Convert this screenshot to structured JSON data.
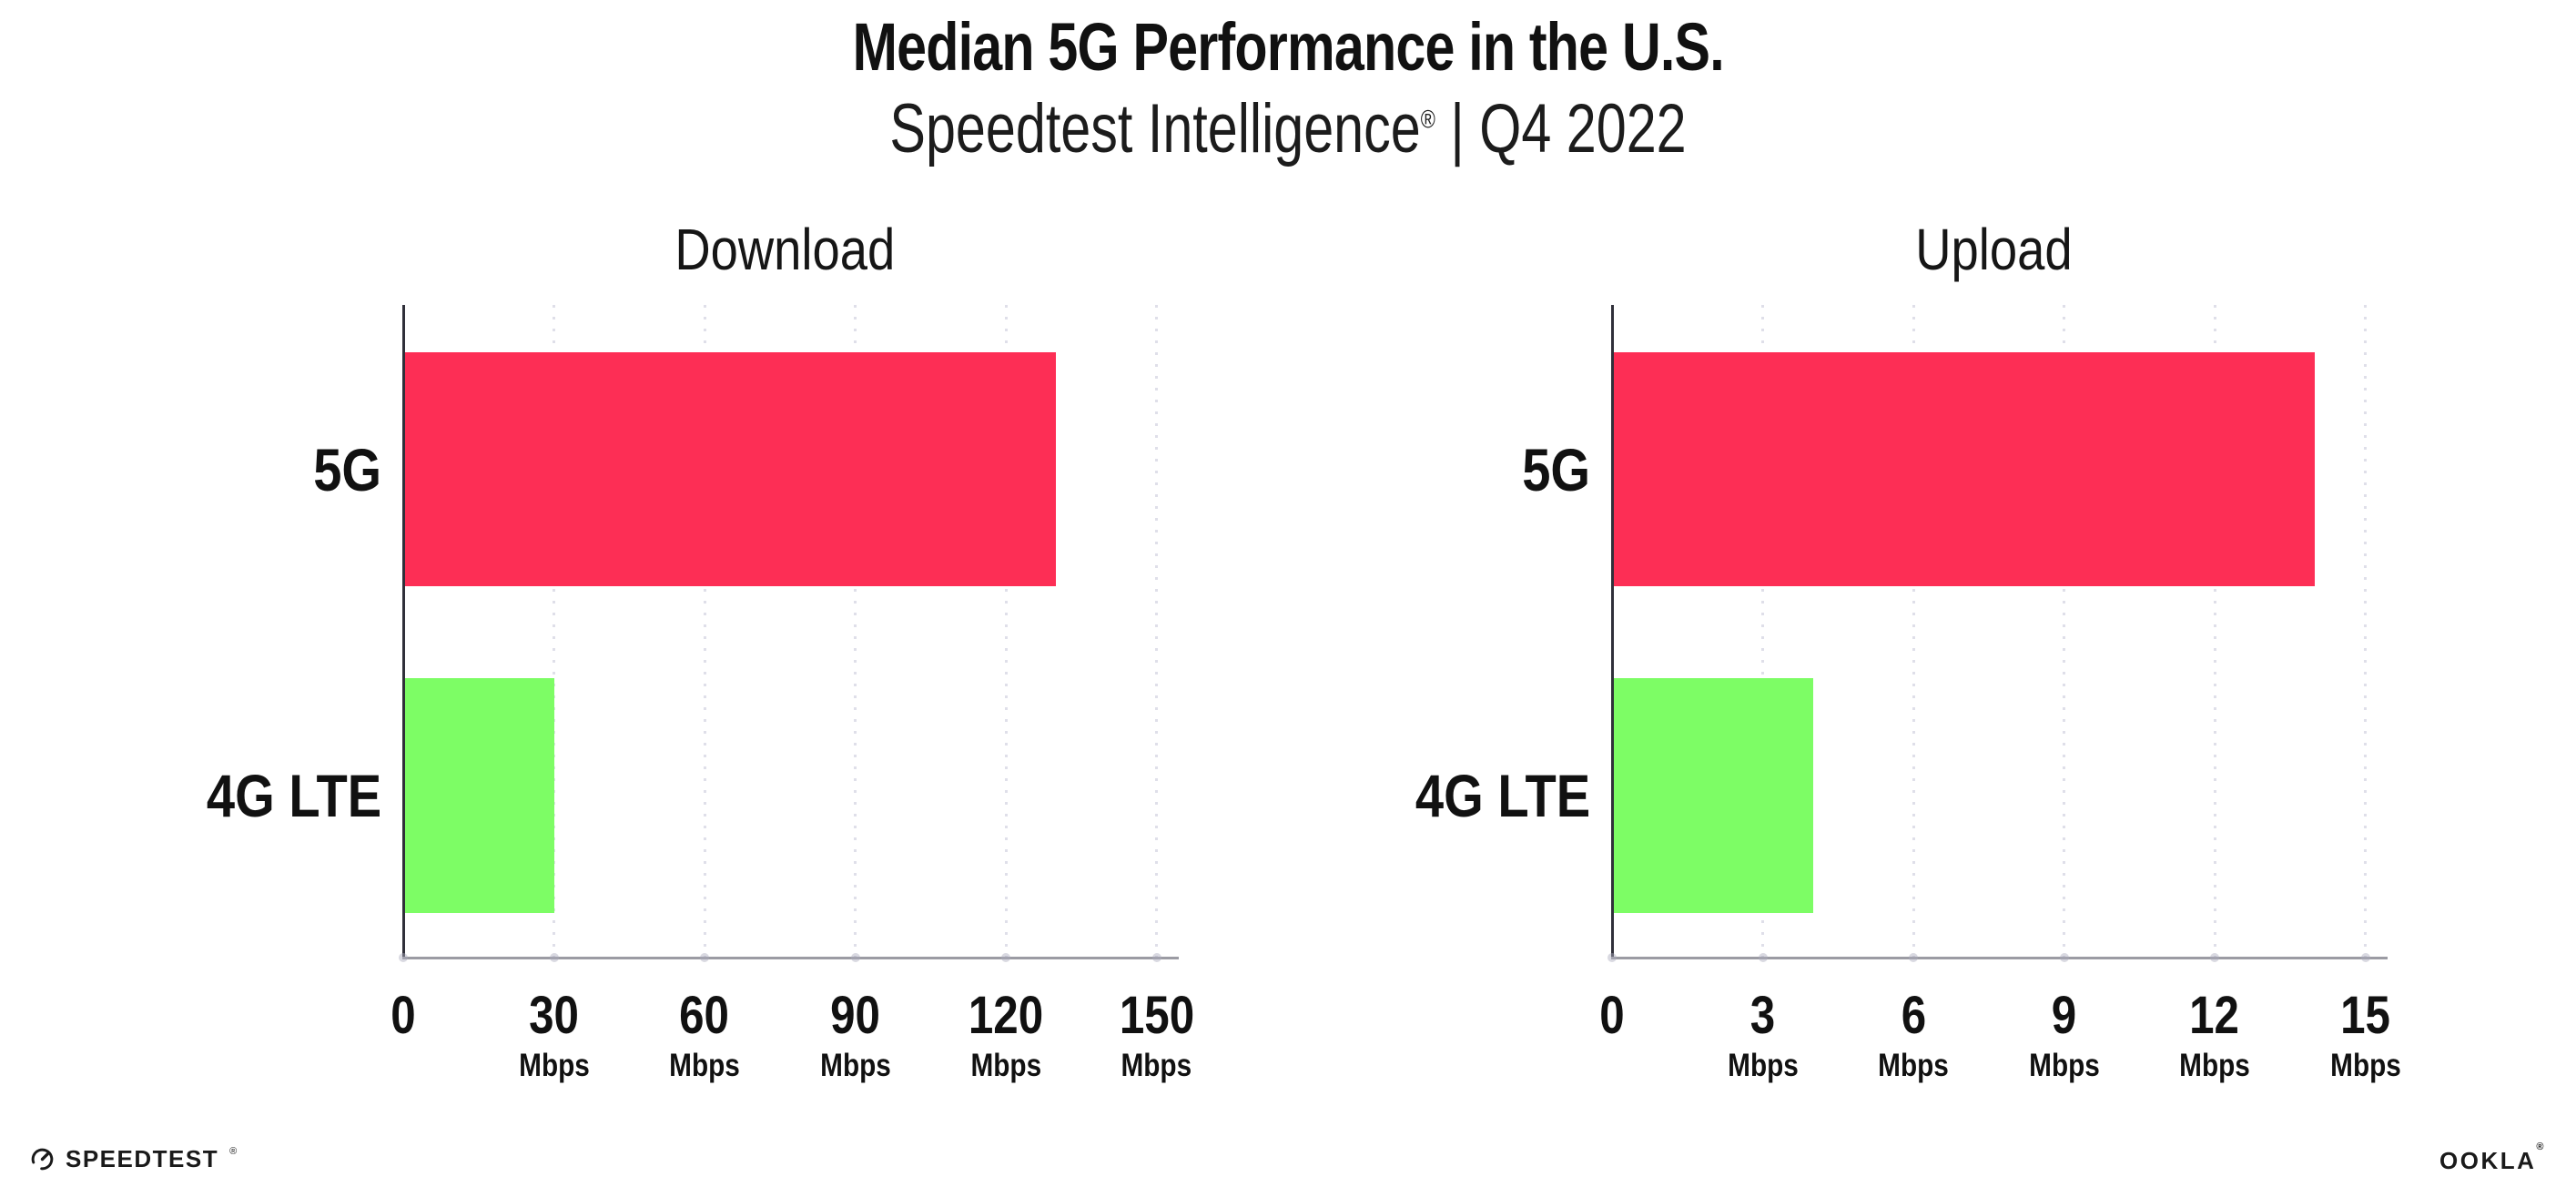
{
  "page": {
    "title": "Median 5G Performance in the U.S.",
    "subtitle": {
      "brand": "Speedtest Intelligence",
      "registered_mark": "®",
      "rest": " | Q4 2022"
    }
  },
  "footer": {
    "speedtest_label": "SPEEDTEST",
    "speedtest_mark": "®",
    "ookla_label": "OOKLA",
    "ookla_mark": "®"
  },
  "colors": {
    "bar_5g": "#fd2e55",
    "bar_4g_lte": "#7dfd65",
    "grid_dots": "#dfdfe9",
    "x_axis": "#9b9ba3",
    "y_axis": "#30303a",
    "text": "#111111"
  },
  "chart_data": [
    {
      "type": "bar",
      "orientation": "horizontal",
      "title": "Download",
      "categories": [
        "5G",
        "4G LTE"
      ],
      "values": [
        130,
        30
      ],
      "unit": "Mbps",
      "xlabel": "",
      "ylabel": "",
      "xlim": [
        0,
        150
      ],
      "xticks": [
        0,
        30,
        60,
        90,
        120,
        150
      ],
      "tick_unit_label": "Mbps",
      "grid": "vertical-dotted",
      "legend": "none",
      "bar_colors": [
        "#fd2e55",
        "#7dfd65"
      ]
    },
    {
      "type": "bar",
      "orientation": "horizontal",
      "title": "Upload",
      "categories": [
        "5G",
        "4G LTE"
      ],
      "values": [
        14,
        4
      ],
      "unit": "Mbps",
      "xlabel": "",
      "ylabel": "",
      "xlim": [
        0,
        15
      ],
      "xticks": [
        0,
        3,
        6,
        9,
        12,
        15
      ],
      "tick_unit_label": "Mbps",
      "grid": "vertical-dotted",
      "legend": "none",
      "bar_colors": [
        "#fd2e55",
        "#7dfd65"
      ]
    }
  ]
}
